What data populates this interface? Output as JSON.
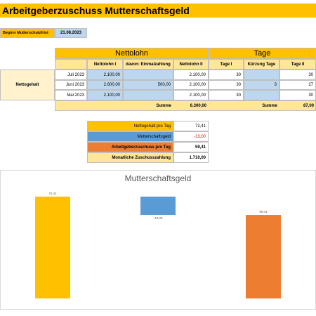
{
  "header": {
    "title": "Arbeitgeberzuschuss Mutterschaftsgeld"
  },
  "start": {
    "label": "Beginn Mutterschutzfrist",
    "date": "21.08.2023"
  },
  "table": {
    "groups": [
      "Nettolohn",
      "Tage"
    ],
    "columns": [
      "Nettolohn I",
      "davon: Einmalzahlung",
      "Nettolohn II",
      "Tage I",
      "Kürzung Tage",
      "Tage II"
    ],
    "row_group": "Nettogehalt",
    "rows": [
      [
        "Juli 2023",
        "2.100,00",
        null,
        "2.100,00",
        "30",
        null,
        "30"
      ],
      [
        "Juni 2023",
        "2.600,00",
        "500,00",
        "2.100,00",
        "30",
        "3",
        "27"
      ],
      [
        "Mai 2023",
        "2.100,00",
        null,
        "2.100,00",
        "30",
        null,
        "30"
      ]
    ],
    "sums": [
      {
        "label": "Summe",
        "value": "6.300,00"
      },
      {
        "label": "Summe",
        "value": "87,00"
      }
    ]
  },
  "summary": [
    {
      "label": "Nettogehalt pro Tag",
      "value": "72,41",
      "color": "#FFC000"
    },
    {
      "label": "Mutterschaftsgeld",
      "value": "-13,00",
      "color": "#5B9BD5",
      "value_color": "#FF0000"
    },
    {
      "label": "Arbeitgeberzuschuss pro Tag",
      "value": "59,41",
      "color": "#ED7D31"
    },
    {
      "label": "Monatliche Zuschusszahlung",
      "value": "1.710,00",
      "color": "#FFE699"
    }
  ],
  "chart_data": {
    "type": "waterfall",
    "title": "Mutterschaftsgeld",
    "values": [
      72.41,
      -13.0,
      59.41
    ],
    "value_labels": [
      "72,41",
      "-13,00",
      "59,41"
    ],
    "totals": [
      false,
      false,
      true
    ],
    "colors": [
      "#FFC000",
      "#5B9BD5",
      "#ED7D31"
    ]
  }
}
